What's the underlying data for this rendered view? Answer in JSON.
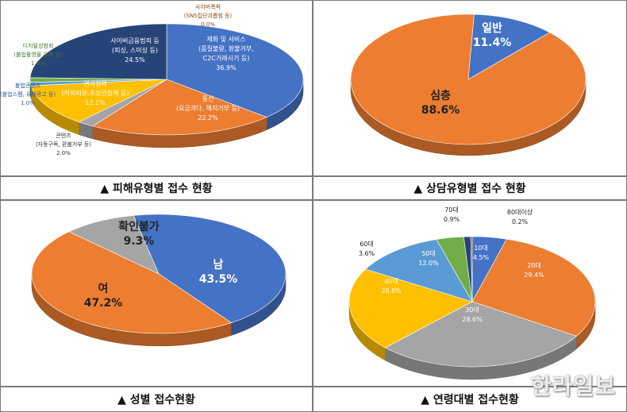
{
  "colors": {
    "blue": "#4472C4",
    "orange": "#ED7D31",
    "gray": "#A5A5A5",
    "gold": "#FFC000",
    "navy": "#264478",
    "green": "#70AD47",
    "lightgreen": "#8FBC6A",
    "steel": "#5B9BD5"
  },
  "captions": {
    "damage": "▲ 피해유형별 접수 현황",
    "consult": "▲ 상담유형별 접수 현황",
    "gender": "▲ 성별 접수현황",
    "age": "▲ 연령대별 접수현황"
  },
  "watermark": "한라일보",
  "chart_data": [
    {
      "type": "pie",
      "labels": [
        {
          "name": "재화 및 서비스",
          "sub": "(품질불량, 환불거부,",
          "sub2": "C2C거래사기 등)",
          "pct": "36.9%"
        },
        {
          "name": "통신",
          "sub": "(요금과다, 해지거부 등)",
          "pct": "22.2%"
        },
        {
          "name": "콘텐츠",
          "sub": "(자동구독, 환불거부 등)",
          "pct": "2.0%"
        },
        {
          "name": "권리침해",
          "sub": "(허위리뷰,초상권침해 등)",
          "pct": "12.1%"
        },
        {
          "name": "불법콘텐츠",
          "sub": "(불법스팸, 유해광고 등)",
          "pct": "1.0%"
        },
        {
          "name": "디지털성범죄",
          "sub": "(불법촬영물 유포 등)",
          "pct": "1.3%"
        },
        {
          "name": "사이버금융범죄 등",
          "sub": "(피싱, 스미싱 등)",
          "pct": "24.5%"
        },
        {
          "name": "사이버폭력",
          "sub": "(SNS집단괴롭힘 등)",
          "pct": "0.0%"
        }
      ],
      "values": [
        36.9,
        22.2,
        2.0,
        12.1,
        1.0,
        1.3,
        24.5,
        0.0
      ],
      "colors": [
        "#4472C4",
        "#ED7D31",
        "#A5A5A5",
        "#FFC000",
        "#5B9BD5",
        "#70AD47",
        "#264478",
        "#9E480E"
      ]
    },
    {
      "type": "pie",
      "labels": [
        {
          "name": "일반",
          "pct": "11.4%"
        },
        {
          "name": "심층",
          "pct": "88.6%"
        }
      ],
      "values": [
        11.4,
        88.6
      ],
      "colors": [
        "#4472C4",
        "#ED7D31"
      ]
    },
    {
      "type": "pie",
      "labels": [
        {
          "name": "남",
          "pct": "43.5%"
        },
        {
          "name": "여",
          "pct": "47.2%"
        },
        {
          "name": "확인불가",
          "pct": "9.3%"
        }
      ],
      "values": [
        43.5,
        47.2,
        9.3
      ],
      "colors": [
        "#4472C4",
        "#ED7D31",
        "#A5A5A5"
      ]
    },
    {
      "type": "pie",
      "labels": [
        {
          "name": "10대",
          "pct": "4.5%"
        },
        {
          "name": "20대",
          "pct": "29.4%"
        },
        {
          "name": "30대",
          "pct": "28.6%"
        },
        {
          "name": "40대",
          "pct": "20.8%"
        },
        {
          "name": "50대",
          "pct": "12.0%"
        },
        {
          "name": "60대",
          "pct": "3.6%"
        },
        {
          "name": "70대",
          "pct": "0.9%"
        },
        {
          "name": "80대이상",
          "pct": "0.2%"
        }
      ],
      "values": [
        4.5,
        29.4,
        28.6,
        20.8,
        12.0,
        3.6,
        0.9,
        0.2
      ],
      "colors": [
        "#4472C4",
        "#ED7D31",
        "#A5A5A5",
        "#FFC000",
        "#5B9BD5",
        "#70AD47",
        "#264478",
        "#9E480E"
      ]
    }
  ]
}
